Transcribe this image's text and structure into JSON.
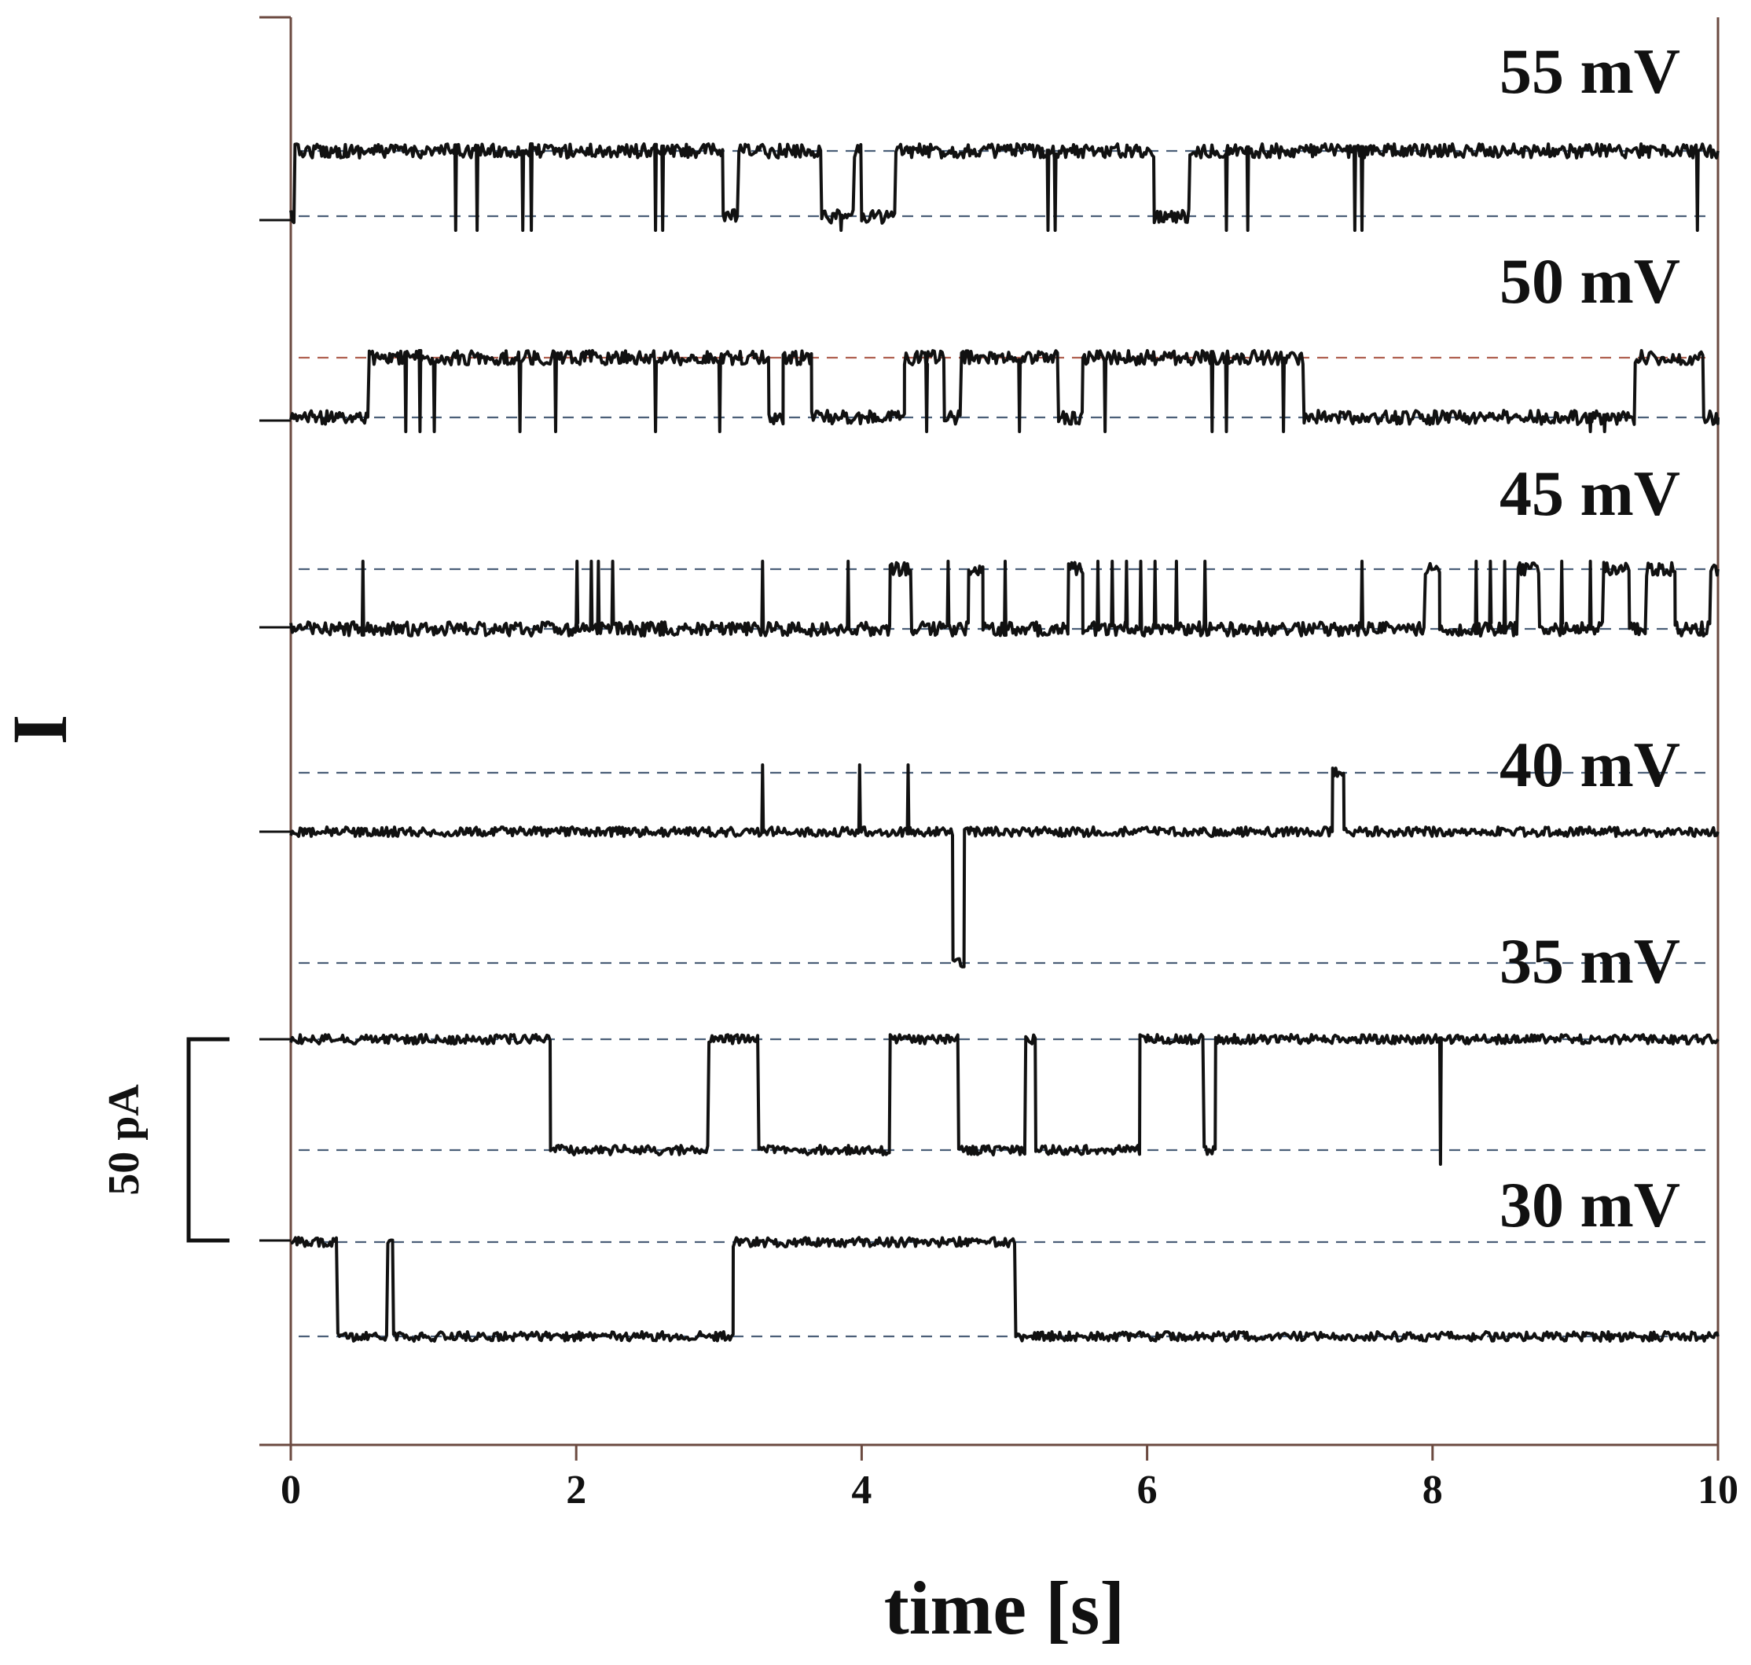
{
  "chart_data": {
    "type": "line",
    "title": "",
    "xlabel": "time [s]",
    "ylabel": "I",
    "xlim": [
      0,
      10
    ],
    "x_ticks": [
      "0",
      "2",
      "4",
      "6",
      "8",
      "10"
    ],
    "grid": false,
    "scale_bar": {
      "label": "50 pA",
      "value_pA": 50
    },
    "colors": {
      "trace": "#111111",
      "axes": "#6b4a40",
      "level_dash": "#4b5f78",
      "open_level_dash_50mV": "#b06050"
    },
    "series": [
      {
        "name": "55 mV",
        "levels": [
          "closed",
          "open"
        ],
        "segments": [
          [
            0.0,
            0.03,
            "closed"
          ],
          [
            0.03,
            3.03,
            "open"
          ],
          [
            3.03,
            3.14,
            "closed"
          ],
          [
            3.14,
            3.72,
            "open"
          ],
          [
            3.72,
            3.95,
            "closed"
          ],
          [
            3.95,
            4.0,
            "open"
          ],
          [
            4.0,
            4.24,
            "closed"
          ],
          [
            4.24,
            6.05,
            "open"
          ],
          [
            6.05,
            6.3,
            "closed"
          ],
          [
            6.3,
            10.0,
            "open"
          ]
        ],
        "brief_closures_s": [
          1.15,
          1.3,
          1.62,
          1.68,
          2.55,
          2.6,
          3.85,
          5.3,
          5.35,
          6.55,
          6.7,
          7.45,
          7.5,
          9.85
        ]
      },
      {
        "name": "50 mV",
        "levels": [
          "closed",
          "open"
        ],
        "segments": [
          [
            0.0,
            0.55,
            "closed"
          ],
          [
            0.55,
            3.35,
            "open"
          ],
          [
            3.35,
            3.45,
            "closed"
          ],
          [
            3.45,
            3.65,
            "open"
          ],
          [
            3.65,
            4.3,
            "closed"
          ],
          [
            4.3,
            4.58,
            "open"
          ],
          [
            4.58,
            4.7,
            "closed"
          ],
          [
            4.7,
            5.38,
            "open"
          ],
          [
            5.38,
            5.55,
            "closed"
          ],
          [
            5.55,
            7.1,
            "open"
          ],
          [
            7.1,
            9.42,
            "closed"
          ],
          [
            9.42,
            9.9,
            "open"
          ],
          [
            9.9,
            10.0,
            "closed"
          ]
        ],
        "brief_closures_s": [
          0.8,
          0.9,
          1.0,
          1.6,
          1.85,
          2.55,
          3.0,
          4.45,
          5.1,
          5.7,
          6.45,
          6.55,
          6.95,
          9.1,
          9.2
        ]
      },
      {
        "name": "45 mV",
        "levels": [
          "closed",
          "open"
        ],
        "segments": [
          [
            0.0,
            4.2,
            "closed"
          ],
          [
            4.2,
            4.35,
            "open"
          ],
          [
            4.35,
            4.75,
            "closed"
          ],
          [
            4.75,
            4.85,
            "open"
          ],
          [
            4.85,
            5.45,
            "closed"
          ],
          [
            5.45,
            5.55,
            "open"
          ],
          [
            5.55,
            7.95,
            "closed"
          ],
          [
            7.95,
            8.05,
            "open"
          ],
          [
            8.05,
            8.6,
            "closed"
          ],
          [
            8.6,
            8.75,
            "open"
          ],
          [
            8.75,
            9.2,
            "closed"
          ],
          [
            9.2,
            9.38,
            "open"
          ],
          [
            9.38,
            9.5,
            "closed"
          ],
          [
            9.5,
            9.7,
            "open"
          ],
          [
            9.7,
            9.95,
            "closed"
          ],
          [
            9.95,
            10.0,
            "open"
          ]
        ],
        "brief_openings_s": [
          0.5,
          2.0,
          2.1,
          2.15,
          2.25,
          3.3,
          3.9,
          4.6,
          5.0,
          5.65,
          5.75,
          5.85,
          5.95,
          6.05,
          6.2,
          6.4,
          7.5,
          8.3,
          8.4,
          8.5,
          8.9,
          9.1
        ]
      },
      {
        "name": "40 mV",
        "levels": [
          "open-up",
          "baseline",
          "down"
        ],
        "segments": [
          [
            0.0,
            4.64,
            "baseline"
          ],
          [
            4.64,
            4.72,
            "down"
          ],
          [
            4.72,
            7.3,
            "baseline"
          ],
          [
            7.3,
            7.38,
            "open-up"
          ],
          [
            7.38,
            10.0,
            "baseline"
          ]
        ],
        "brief_openings_s": [
          3.3,
          3.98,
          4.32
        ]
      },
      {
        "name": "35 mV",
        "levels": [
          "closed",
          "open"
        ],
        "segments": [
          [
            0.0,
            1.82,
            "open"
          ],
          [
            1.82,
            2.93,
            "closed"
          ],
          [
            2.93,
            3.28,
            "open"
          ],
          [
            3.28,
            4.2,
            "closed"
          ],
          [
            4.2,
            4.68,
            "open"
          ],
          [
            4.68,
            5.15,
            "closed"
          ],
          [
            5.15,
            5.22,
            "open"
          ],
          [
            5.22,
            5.95,
            "closed"
          ],
          [
            5.95,
            6.4,
            "open"
          ],
          [
            6.4,
            6.48,
            "closed"
          ],
          [
            6.48,
            10.0,
            "open"
          ]
        ],
        "brief_closures_s": [
          8.05
        ]
      },
      {
        "name": "30 mV",
        "levels": [
          "closed",
          "open"
        ],
        "segments": [
          [
            0.0,
            0.33,
            "open"
          ],
          [
            0.33,
            0.68,
            "closed"
          ],
          [
            0.68,
            0.72,
            "open"
          ],
          [
            0.72,
            3.1,
            "closed"
          ],
          [
            3.1,
            5.08,
            "open"
          ],
          [
            5.08,
            10.0,
            "closed"
          ]
        ]
      }
    ]
  }
}
